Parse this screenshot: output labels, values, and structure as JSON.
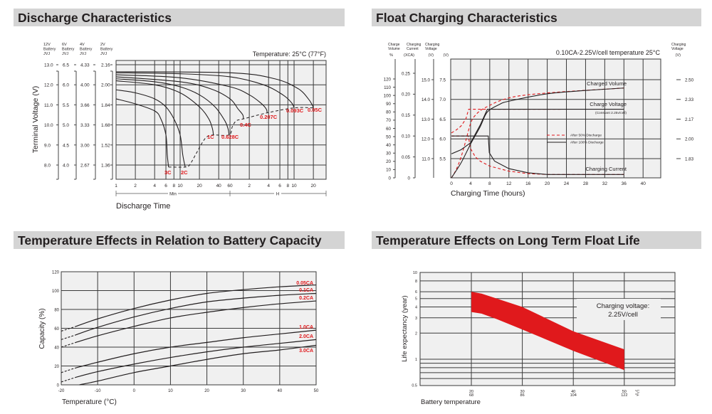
{
  "colors": {
    "header_bg": "#d4d4d4",
    "plot_bg": "#f0f0f0",
    "grid": "#3a3a3a",
    "accent_red": "#e0191c",
    "curve": "#231f20"
  },
  "chart_data": [
    {
      "type": "line",
      "title": "Discharge Characteristics",
      "xlabel": "Discharge Time",
      "ylabel": "Terminal Voltage (V)",
      "x_scale": "log",
      "annotation": "Temperature: 25°C (77°F)",
      "x_ticks": [
        "1",
        "2",
        "4",
        "6",
        "8",
        "10",
        "20",
        "40",
        "60",
        "2",
        "4",
        "6",
        "8",
        "10",
        "20"
      ],
      "x_tick_minutes": [
        1,
        2,
        4,
        6,
        8,
        10,
        20,
        40,
        60,
        120,
        240,
        360,
        480,
        600,
        1200
      ],
      "x_unit_min": "Min",
      "x_unit_h": "H",
      "y_columns": [
        {
          "header": [
            "12V",
            "Battery",
            "JVJ"
          ],
          "ticks": [
            "13.0",
            "12.0",
            "11.0",
            "10.0",
            "9.0",
            "8.0"
          ]
        },
        {
          "header": [
            "6V",
            "Battery",
            "JVJ"
          ],
          "ticks": [
            "6.5",
            "6.0",
            "5.5",
            "5.0",
            "4.5",
            "4.0"
          ]
        },
        {
          "header": [
            "4V",
            "Battery",
            "JVJ"
          ],
          "ticks": [
            "4.33",
            "4.00",
            "3.66",
            "3.33",
            "3.00",
            "2.67"
          ]
        },
        {
          "header": [
            "2V",
            "Battery",
            "JVJ"
          ],
          "ticks": [
            "2.16",
            "2.00",
            "1.84",
            "1.68",
            "1.52",
            "1.36"
          ]
        }
      ],
      "y_values_12v": [
        13,
        12,
        11,
        10,
        9,
        8
      ],
      "series": [
        {
          "name": "3C",
          "points": [
            [
              1,
              11.3
            ],
            [
              2,
              11.05
            ],
            [
              4,
              10.7
            ],
            [
              5,
              10.3
            ],
            [
              6,
              9.5
            ],
            [
              6.3,
              8.5
            ],
            [
              6.6,
              7.9
            ]
          ]
        },
        {
          "name": "2C",
          "points": [
            [
              1,
              11.75
            ],
            [
              2,
              11.6
            ],
            [
              4,
              11.3
            ],
            [
              6,
              10.9
            ],
            [
              8,
              10.3
            ],
            [
              10,
              9.5
            ],
            [
              11,
              8.5
            ],
            [
              12,
              7.9
            ]
          ]
        },
        {
          "name": "1C",
          "points": [
            [
              1,
              12.2
            ],
            [
              4,
              12.0
            ],
            [
              10,
              11.6
            ],
            [
              20,
              10.9
            ],
            [
              28,
              10.3
            ],
            [
              32,
              9.8
            ],
            [
              33,
              9.5
            ]
          ]
        },
        {
          "name": "0.628C",
          "points": [
            [
              1,
              12.3
            ],
            [
              4,
              12.15
            ],
            [
              10,
              11.9
            ],
            [
              20,
              11.5
            ],
            [
              35,
              10.9
            ],
            [
              50,
              10.2
            ],
            [
              56,
              9.8
            ],
            [
              58,
              9.5
            ]
          ]
        },
        {
          "name": "0.4C",
          "points": [
            [
              1,
              12.4
            ],
            [
              10,
              12.15
            ],
            [
              30,
              11.8
            ],
            [
              60,
              11.3
            ],
            [
              80,
              10.8
            ],
            [
              95,
              10.5
            ],
            [
              97,
              10.3
            ]
          ]
        },
        {
          "name": "0.207C",
          "points": [
            [
              1,
              12.5
            ],
            [
              10,
              12.35
            ],
            [
              60,
              11.9
            ],
            [
              120,
              11.5
            ],
            [
              180,
              11.1
            ],
            [
              220,
              10.8
            ],
            [
              228,
              10.6
            ]
          ]
        },
        {
          "name": "0.093C",
          "points": [
            [
              1,
              12.6
            ],
            [
              10,
              12.55
            ],
            [
              60,
              12.4
            ],
            [
              200,
              12.0
            ],
            [
              400,
              11.5
            ],
            [
              550,
              11.1
            ],
            [
              600,
              10.85
            ]
          ]
        },
        {
          "name": "0.05C",
          "points": [
            [
              1,
              12.65
            ],
            [
              60,
              12.6
            ],
            [
              300,
              12.3
            ],
            [
              700,
              11.8
            ],
            [
              1000,
              11.3
            ],
            [
              1150,
              11.0
            ],
            [
              1200,
              10.85
            ]
          ]
        }
      ],
      "cutoff_line": [
        [
          6.6,
          7.9
        ],
        [
          12,
          7.9
        ],
        [
          14,
          8.0
        ],
        [
          18,
          8.6
        ],
        [
          22,
          9.1
        ],
        [
          26,
          9.4
        ],
        [
          33,
          9.5
        ],
        [
          58,
          9.5
        ],
        [
          65,
          9.9
        ],
        [
          75,
          10.2
        ],
        [
          97,
          10.3
        ],
        [
          228,
          10.6
        ],
        [
          600,
          10.85
        ],
        [
          1200,
          10.85
        ]
      ]
    },
    {
      "type": "line",
      "title": "Float Charging Characteristics",
      "xlabel": "Charging Time (hours)",
      "annotation": "0.10CA-2.25V/cell  temperature 25°C",
      "x_ticks": [
        0,
        4,
        8,
        12,
        16,
        20,
        24,
        28,
        32,
        36,
        40
      ],
      "axes": {
        "charge_volume": {
          "header": [
            "Charge",
            "Volume"
          ],
          "unit": "%",
          "ticks": [
            0,
            10,
            20,
            30,
            40,
            50,
            60,
            70,
            80,
            90,
            100,
            110,
            120
          ]
        },
        "charging_current": {
          "header": [
            "Charging",
            "Current"
          ],
          "unit": "(XCA)",
          "ticks": [
            "0",
            "0.05",
            "0.10",
            "0.15",
            "0.20",
            "0.25"
          ]
        },
        "charging_voltage_12v": {
          "header": [
            "Charging",
            "Voltage"
          ],
          "unit": "(V)",
          "ticks": [
            "11.0",
            "12.0",
            "13.0",
            "14.0",
            "15.0"
          ]
        },
        "charging_voltage_6v": {
          "unit": "(V)",
          "ticks": [
            "5.5",
            "6.0",
            "6.5",
            "7.0",
            "7.5"
          ]
        },
        "charging_voltage_2v": {
          "header": [
            "Charging",
            "Voltage"
          ],
          "unit": "(V)",
          "ticks": [
            "1.83",
            "2.00",
            "2.17",
            "2.33",
            "2.50"
          ]
        }
      },
      "curve_labels": {
        "volume": "Charged Volume",
        "voltage": "Charge Voltage",
        "voltage_note": "(Constant 2.25v/cell)",
        "current": "Charging Current"
      },
      "legend": {
        "position": "center-right",
        "items": [
          "After  50% Discharge",
          "After 100% Discharge"
        ]
      },
      "series": [
        {
          "name": "After  50% Discharge",
          "style": "dashed-red",
          "volume_pct": [
            [
              0,
              0
            ],
            [
              1,
              10
            ],
            [
              2,
              25
            ],
            [
              3,
              45
            ],
            [
              4,
              66
            ],
            [
              5,
              76
            ],
            [
              7,
              85
            ],
            [
              12,
              97
            ],
            [
              20,
              103
            ],
            [
              36,
              109
            ]
          ],
          "voltage_12v": [
            [
              0,
              12.3
            ],
            [
              1,
              12.45
            ],
            [
              2,
              12.65
            ],
            [
              3,
              13.0
            ],
            [
              3.6,
              13.5
            ],
            [
              23,
              13.5
            ]
          ],
          "current_ca": [
            [
              0,
              0.1
            ],
            [
              3.5,
              0.1
            ],
            [
              4,
              0.07
            ],
            [
              5,
              0.05
            ],
            [
              6,
              0.04
            ],
            [
              8,
              0.028
            ],
            [
              12,
              0.016
            ],
            [
              16,
              0.01
            ],
            [
              20,
              0.008
            ],
            [
              36,
              0.008
            ]
          ]
        },
        {
          "name": "After 100% Discharge",
          "style": "solid-black",
          "volume_pct": [
            [
              0,
              0
            ],
            [
              2,
              18
            ],
            [
              4,
              41
            ],
            [
              6,
              62
            ],
            [
              7.5,
              80
            ],
            [
              10,
              89
            ],
            [
              12,
              93
            ],
            [
              20,
              102
            ],
            [
              28,
              106
            ],
            [
              36,
              109
            ]
          ],
          "voltage_12v": [
            [
              0,
              11.24
            ],
            [
              2,
              11.45
            ],
            [
              4,
              11.8
            ],
            [
              6,
              12.7
            ],
            [
              7.5,
              13.5
            ],
            [
              36,
              13.5
            ]
          ],
          "current_ca": [
            [
              0,
              0.1
            ],
            [
              7.7,
              0.1
            ],
            [
              7.9,
              0.06
            ],
            [
              9,
              0.04
            ],
            [
              12,
              0.022
            ],
            [
              16,
              0.012
            ],
            [
              20,
              0.008
            ],
            [
              36,
              0.008
            ]
          ]
        }
      ]
    },
    {
      "type": "line",
      "title": "Temperature Effects in Relation to Battery Capacity",
      "xlabel": "Temperature (°C)",
      "ylabel": "Capacity (%)",
      "xlim": [
        -20,
        50
      ],
      "ylim": [
        0,
        120
      ],
      "x_ticks": [
        "-20",
        "-10",
        "0",
        "10",
        "20",
        "30",
        "40",
        "50"
      ],
      "y_ticks": [
        "0",
        "20",
        "40",
        "60",
        "80",
        "100",
        "120"
      ],
      "grid": true,
      "dashed_below_c": -16,
      "series": [
        {
          "name": "0.05CA",
          "points": [
            [
              -20,
              57
            ],
            [
              -16,
              62
            ],
            [
              -10,
              70
            ],
            [
              0,
              81
            ],
            [
              10,
              90
            ],
            [
              20,
              97
            ],
            [
              30,
              101
            ],
            [
              40,
              104
            ],
            [
              50,
              106
            ]
          ]
        },
        {
          "name": "0.1CA",
          "points": [
            [
              -20,
              48
            ],
            [
              -16,
              53
            ],
            [
              -10,
              61
            ],
            [
              0,
              72
            ],
            [
              10,
              81
            ],
            [
              20,
              88
            ],
            [
              30,
              92
            ],
            [
              40,
              95
            ],
            [
              50,
              97
            ]
          ]
        },
        {
          "name": "0.2CA",
          "points": [
            [
              -20,
              40
            ],
            [
              -16,
              45
            ],
            [
              -10,
              52
            ],
            [
              0,
              62
            ],
            [
              10,
              71
            ],
            [
              20,
              77
            ],
            [
              30,
              82
            ],
            [
              40,
              86
            ],
            [
              50,
              89
            ]
          ]
        },
        {
          "name": "1.0CA",
          "points": [
            [
              -20,
              13
            ],
            [
              -16,
              18
            ],
            [
              -10,
              24
            ],
            [
              0,
              33
            ],
            [
              10,
              40
            ],
            [
              20,
              45
            ],
            [
              30,
              50
            ],
            [
              40,
              54
            ],
            [
              50,
              58
            ]
          ]
        },
        {
          "name": "2.0CA",
          "points": [
            [
              -20,
              3
            ],
            [
              -16,
              8
            ],
            [
              -10,
              14
            ],
            [
              0,
              22
            ],
            [
              10,
              29
            ],
            [
              20,
              35
            ],
            [
              30,
              40
            ],
            [
              40,
              44
            ],
            [
              50,
              48
            ]
          ]
        },
        {
          "name": "3.0CA",
          "points": [
            [
              -15,
              0
            ],
            [
              -10,
              4
            ],
            [
              0,
              13
            ],
            [
              10,
              20
            ],
            [
              20,
              27
            ],
            [
              30,
              33
            ],
            [
              40,
              37
            ],
            [
              50,
              42
            ]
          ]
        }
      ]
    },
    {
      "type": "area",
      "title": "Temperature Effects on Long Term Float Life",
      "xlabel": "Battery temperature",
      "ylabel": "Life expectancy (year)",
      "y_scale": "log",
      "ylim": [
        0.5,
        10
      ],
      "xlim": [
        10,
        60
      ],
      "y_ticks": [
        "10",
        "8",
        "6",
        "5",
        "4",
        "3",
        "2",
        "1",
        "0.5"
      ],
      "x_ticks_c": [
        "20",
        "30",
        "40",
        "50"
      ],
      "x_ticks_f": [
        "68",
        "86",
        "104",
        "122"
      ],
      "x_unit_c": "°C",
      "x_unit_f": "°F",
      "annotation": [
        "Charging voltage:",
        "2.25V/cell"
      ],
      "band_upper": [
        [
          20,
          6
        ],
        [
          22,
          5.7
        ],
        [
          25,
          5.0
        ],
        [
          30,
          4.0
        ],
        [
          40,
          2.1
        ],
        [
          50,
          1.3
        ]
      ],
      "band_lower": [
        [
          20,
          3.5
        ],
        [
          22,
          3.35
        ],
        [
          25,
          2.9
        ],
        [
          30,
          2.2
        ],
        [
          40,
          1.25
        ],
        [
          50,
          0.75
        ]
      ]
    }
  ]
}
